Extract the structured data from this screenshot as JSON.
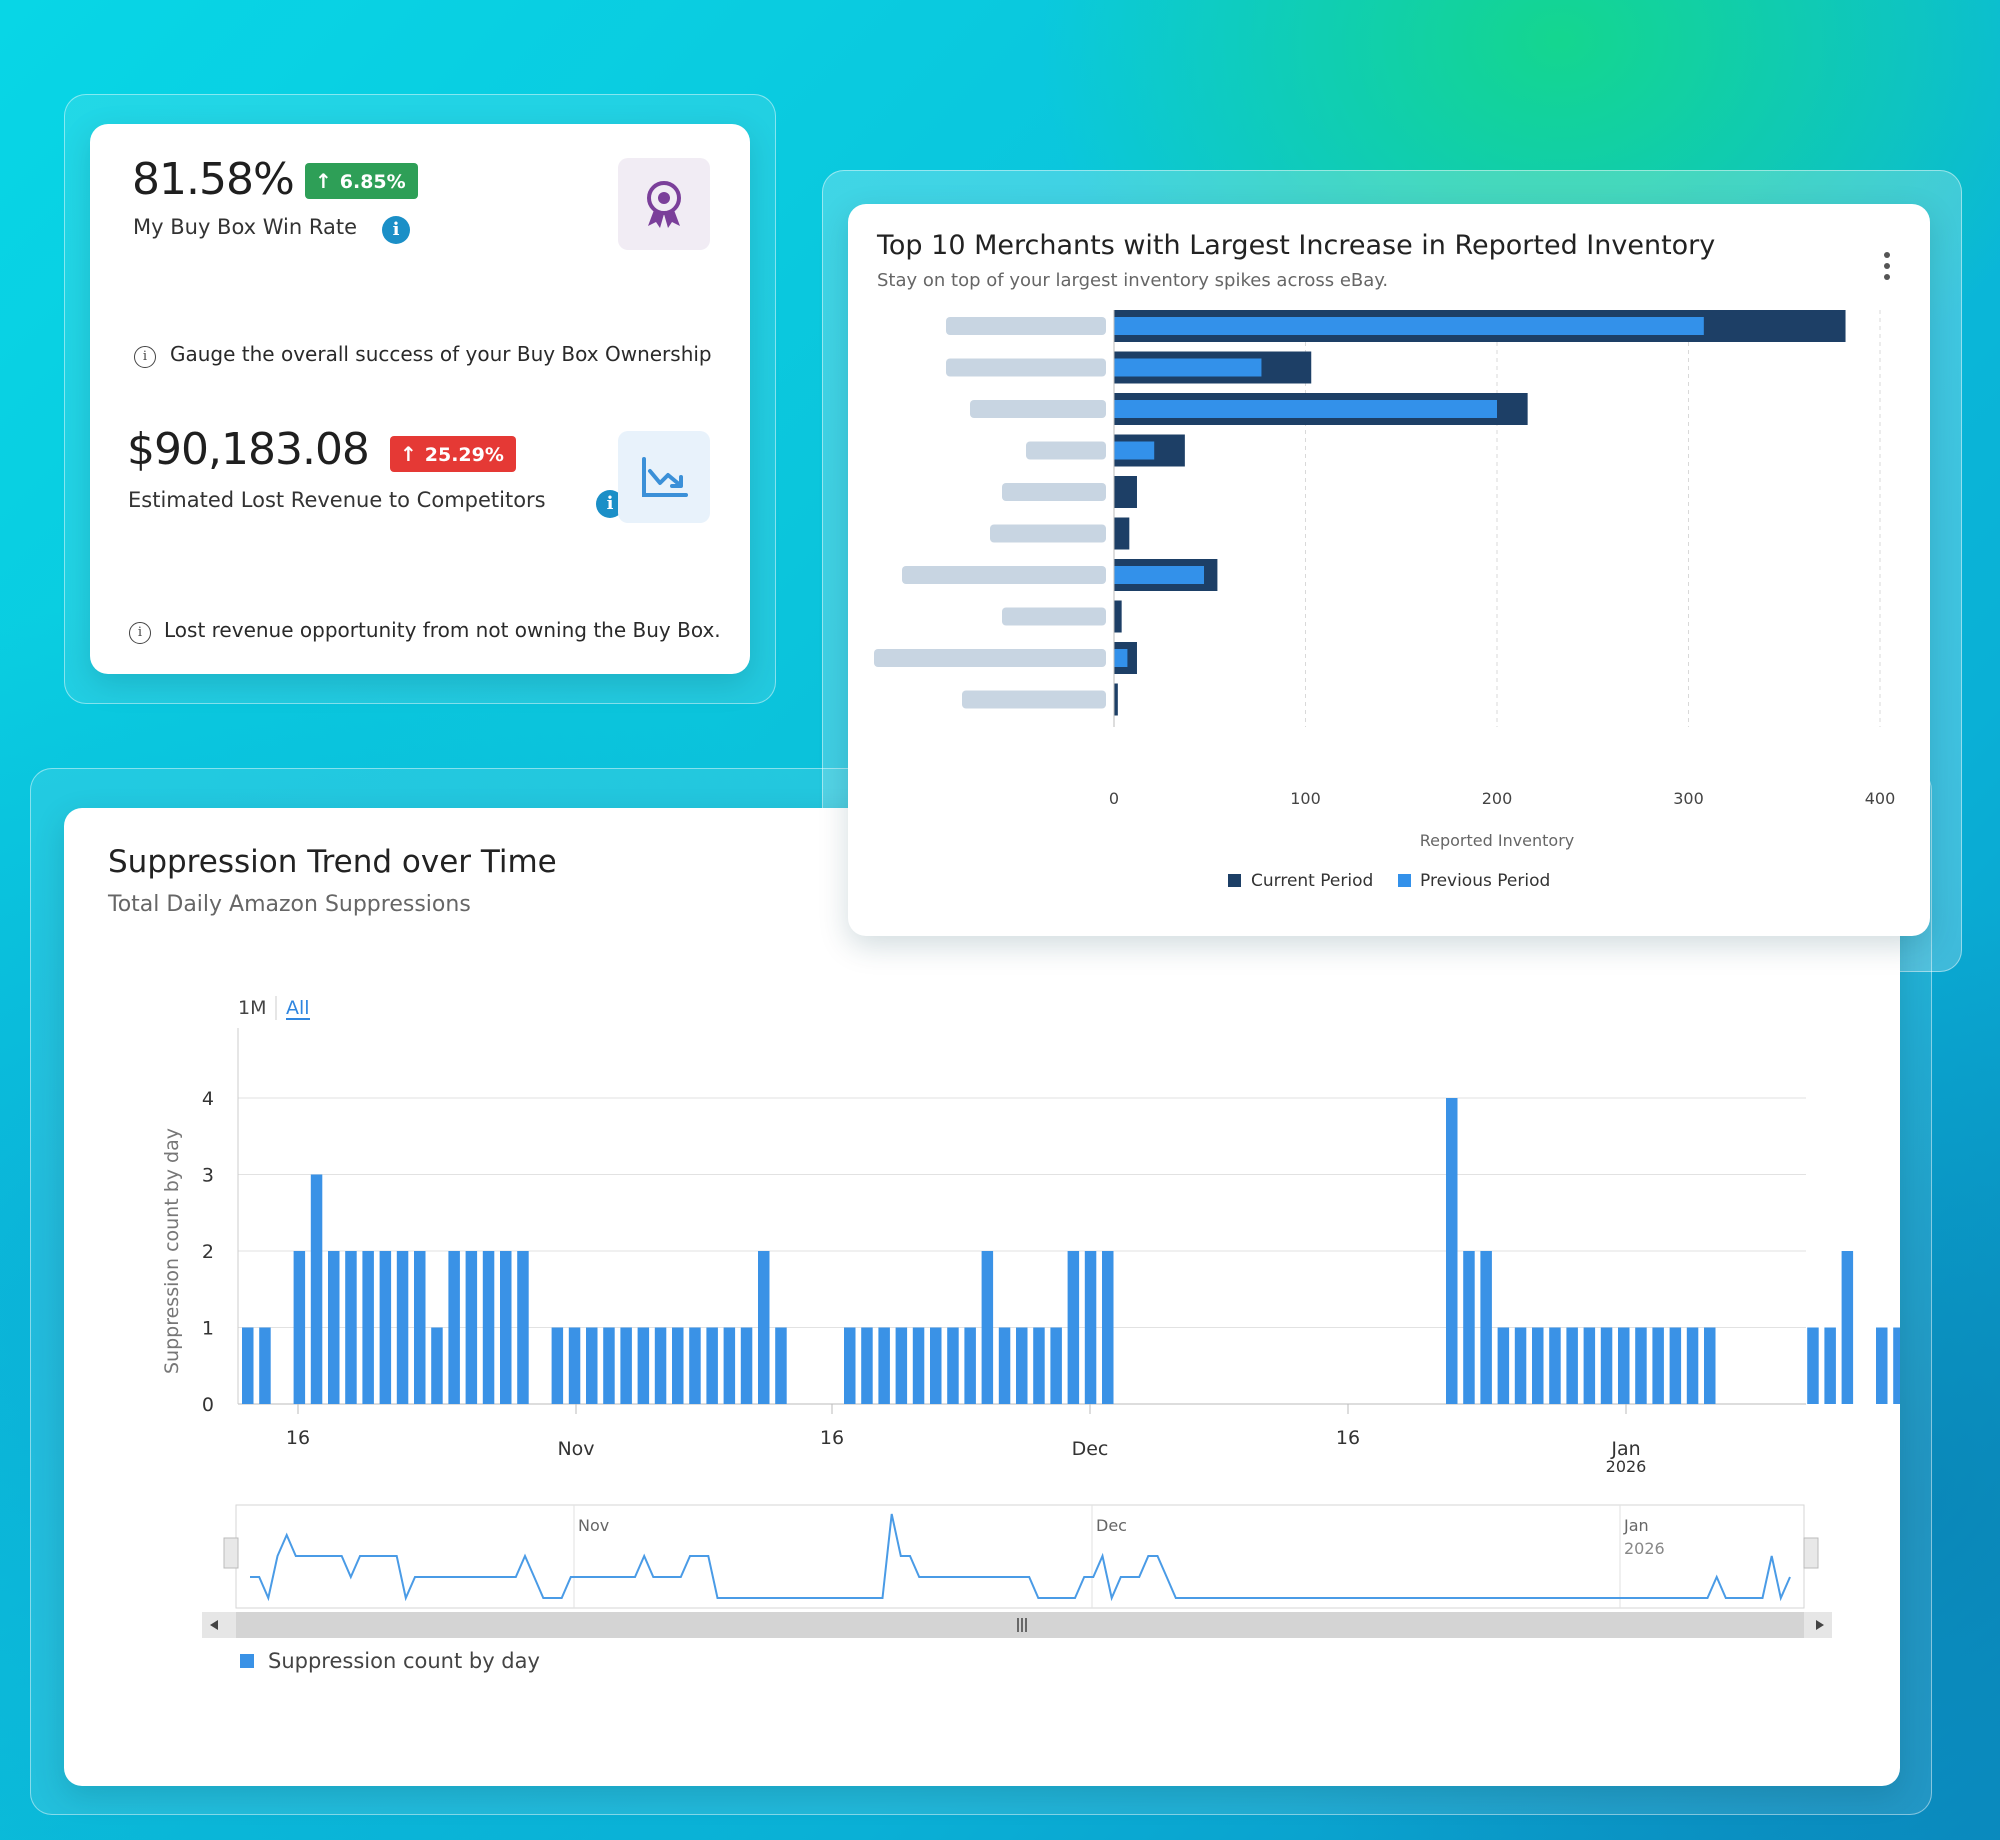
{
  "kpi": {
    "win_rate": {
      "value": "81.58%",
      "change": "6.85%",
      "label": "My Buy Box Win Rate",
      "hint": "Gauge the overall success of your Buy Box Ownership",
      "badge_color": "#2e9f57"
    },
    "lost_revenue": {
      "value": "$90,183.08",
      "change": "25.29%",
      "label": "Estimated Lost Revenue to Competitors",
      "hint": "Lost revenue opportunity from not owning the Buy Box.",
      "badge_color": "#e53935"
    },
    "icons": {
      "win_rate": "award-ribbon-icon",
      "lost_revenue": "declining-chart-icon",
      "info": "info-icon"
    }
  },
  "merchants": {
    "title": "Top 10 Merchants with Largest Increase in Reported Inventory",
    "subtitle": "Stay on top of your largest inventory spikes across eBay.",
    "menu_icon": "kebab-menu-icon"
  },
  "suppression": {
    "title": "Suppression Trend over Time",
    "subtitle": "Total Daily Amazon Suppressions",
    "range_buttons": [
      "1M",
      "All"
    ],
    "active_range": "All"
  },
  "chart_data": [
    {
      "type": "bar",
      "orientation": "horizontal",
      "categories_redacted": true,
      "series": [
        {
          "name": "Current Period",
          "color": "#1d3f66",
          "values": [
            382,
            103,
            216,
            37,
            12,
            8,
            54,
            4,
            12,
            2
          ]
        },
        {
          "name": "Previous Period",
          "color": "#3391ea",
          "values": [
            308,
            77,
            200,
            21,
            0,
            0,
            47,
            0,
            7,
            0
          ]
        }
      ],
      "xlabel": "Reported Inventory",
      "xlim": [
        0,
        400
      ],
      "x_ticks": [
        0,
        100,
        200,
        300,
        400
      ],
      "grid": "vertical dashed",
      "legend": "bottom-center"
    },
    {
      "type": "bar",
      "series": [
        {
          "name": "Suppression count by day",
          "color": "#3a92e6",
          "values": [
            1,
            1,
            0,
            2,
            3,
            2,
            2,
            2,
            2,
            2,
            2,
            1,
            2,
            2,
            2,
            2,
            2,
            0,
            1,
            1,
            1,
            1,
            1,
            1,
            1,
            1,
            1,
            1,
            1,
            1,
            2,
            1,
            0,
            0,
            0,
            1,
            1,
            1,
            1,
            1,
            1,
            1,
            1,
            2,
            1,
            1,
            1,
            1,
            2,
            2,
            2,
            0,
            0,
            0,
            0,
            0,
            0,
            0,
            0,
            0,
            0,
            0,
            0,
            0,
            0,
            0,
            0,
            0,
            0,
            0,
            4,
            2,
            2,
            1,
            1,
            1,
            1,
            1,
            1,
            1,
            1,
            1,
            1,
            1,
            1,
            1,
            0,
            0,
            0,
            0,
            0,
            1,
            1,
            2,
            0,
            1,
            1,
            1,
            2,
            2,
            1,
            0,
            0,
            0,
            0,
            0,
            0,
            0,
            0,
            0,
            0,
            0,
            0,
            0,
            0,
            0,
            0,
            0,
            0,
            0,
            0,
            0,
            0,
            0,
            0,
            0,
            0,
            0,
            0,
            0,
            0,
            0,
            0,
            0,
            0,
            0,
            0,
            0,
            0,
            0,
            0,
            0,
            0,
            0,
            0,
            0,
            0,
            0,
            0,
            0,
            0,
            0,
            0,
            0,
            0,
            0,
            0,
            0,
            0,
            0,
            1,
            0,
            0,
            0,
            0,
            0,
            2,
            0,
            1
          ]
        }
      ],
      "ylabel": "Suppression count by day",
      "ylim": [
        0,
        4
      ],
      "y_ticks": [
        0,
        1,
        2,
        3,
        4
      ],
      "x_tick_labels": [
        "16",
        "Nov",
        "16",
        "Dec",
        "16",
        "Jan 2026"
      ],
      "navigator_labels": [
        "Nov",
        "Dec",
        "Jan",
        "2026"
      ],
      "legend": "bottom-left",
      "grid": true
    }
  ]
}
